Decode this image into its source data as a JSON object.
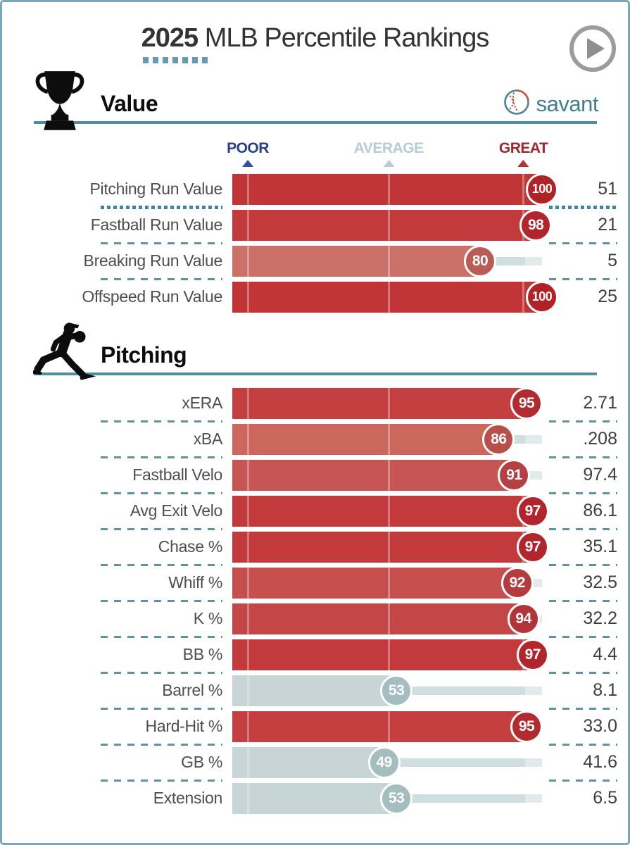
{
  "header": {
    "year": "2025",
    "title_rest": " MLB Percentile Rankings",
    "play_button": "play-icon"
  },
  "logo": {
    "text": "savant",
    "icon": "baseball-icon"
  },
  "axis_markers": [
    {
      "label": "POOR",
      "pos": 5,
      "color": "#2a3f8c",
      "tri": "#3050a0"
    },
    {
      "label": "AVERAGE",
      "pos": 50.5,
      "color": "#b7ccd4",
      "tri": "#b7ccd4"
    },
    {
      "label": "GREAT",
      "pos": 94,
      "color": "#a1272e",
      "tri": "#b2333a"
    }
  ],
  "chart_data": [
    {
      "type": "bar",
      "title": "Value",
      "icon": "trophy-icon",
      "xlim": [
        0,
        100
      ],
      "categories": [
        "Pitching Run Value",
        "Fastball Run Value",
        "Breaking Run Value",
        "Offspeed Run Value"
      ],
      "series": [
        {
          "name": "percentile",
          "values": [
            100,
            98,
            80,
            100
          ]
        },
        {
          "name": "stat_value",
          "values": [
            "51",
            "21",
            "5",
            "25"
          ]
        }
      ],
      "bar_colors": [
        "#c23536",
        "#c23a3b",
        "#cc7168",
        "#c23536"
      ],
      "badge_colors": [
        "#b12227",
        "#b1262c",
        "#ba5c55",
        "#b12227"
      ],
      "highlight_separator_after": 0
    },
    {
      "type": "bar",
      "title": "Pitching",
      "icon": "pitcher-icon",
      "xlim": [
        0,
        100
      ],
      "categories": [
        "xERA",
        "xBA",
        "Fastball Velo",
        "Avg Exit Velo",
        "Chase %",
        "Whiff %",
        "K %",
        "BB %",
        "Barrel %",
        "Hard-Hit %",
        "GB %",
        "Extension"
      ],
      "series": [
        {
          "name": "percentile",
          "values": [
            95,
            86,
            91,
            97,
            97,
            92,
            94,
            97,
            53,
            95,
            49,
            53
          ]
        },
        {
          "name": "stat_value",
          "values": [
            "2.71",
            ".208",
            "97.4",
            "86.1",
            "35.1",
            "32.5",
            "32.2",
            "4.4",
            "8.1",
            "33.0",
            "41.6",
            "6.5"
          ]
        }
      ],
      "bar_colors": [
        "#c33f40",
        "#cb675d",
        "#c75553",
        "#c23a3b",
        "#c23a3b",
        "#c64f4e",
        "#c44647",
        "#c23a3b",
        "#c8d5d6",
        "#c33f40",
        "#c8d5d6",
        "#c8d5d6"
      ],
      "badge_colors": [
        "#b22b30",
        "#b94f49",
        "#b54043",
        "#b1262c",
        "#b1262c",
        "#b43b3e",
        "#b23338",
        "#b1262c",
        "#a4bdbf",
        "#b22b30",
        "#a4bdbf",
        "#a4bdbf"
      ]
    }
  ],
  "style": {
    "grid_positions": [
      5,
      50.5,
      94
    ],
    "track_color": "#cfdfdf",
    "track_cap_color": "#e1ebeb",
    "accent_teal": "#4d8fa0"
  }
}
